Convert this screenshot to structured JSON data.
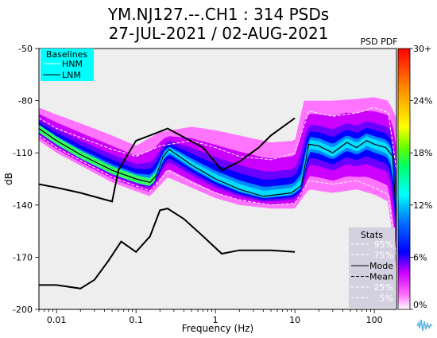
{
  "chart_data": {
    "type": "heatmap",
    "title": "YM.NJ127.--.CH1 : 314 PSDs",
    "subtitle": "27-JUL-2021 / 02-AUG-2021",
    "xlabel": "Frequency (Hz)",
    "ylabel": "dB",
    "x_scale": "log",
    "xlim": [
      0.006,
      190
    ],
    "ylim": [
      -200,
      -50
    ],
    "x_ticks": [
      {
        "value": 0.01,
        "label": "0.01"
      },
      {
        "value": 0.1,
        "label": "0.1"
      },
      {
        "value": 1,
        "label": "1"
      },
      {
        "value": 10,
        "label": "10"
      },
      {
        "value": 100,
        "label": "100"
      }
    ],
    "y_ticks": [
      {
        "value": -50,
        "label": "-50"
      },
      {
        "value": -80,
        "label": "-80"
      },
      {
        "value": -110,
        "label": "-110"
      },
      {
        "value": -140,
        "label": "-140"
      },
      {
        "value": -170,
        "label": "-170"
      },
      {
        "value": -200,
        "label": "-200"
      }
    ],
    "colorbar": {
      "label": "PSD PDF",
      "ticks": [
        {
          "value": 30,
          "label": "30+"
        },
        {
          "value": 24,
          "label": "24%"
        },
        {
          "value": 18,
          "label": "18%"
        },
        {
          "value": 12,
          "label": "12%"
        },
        {
          "value": 6,
          "label": "6%"
        },
        {
          "value": 0,
          "label": "0%"
        }
      ]
    },
    "baselines": {
      "title": "Baselines",
      "entries": [
        {
          "name": "HNM",
          "color": "#ffffff"
        },
        {
          "name": "LNM",
          "color": "#000000"
        }
      ],
      "box_color": "#00ffff"
    },
    "stats": {
      "title": "Stats",
      "entries": [
        {
          "name": "95%",
          "color": "#ffffff",
          "style": "dashed"
        },
        {
          "name": "75%",
          "color": "#ffffff",
          "style": "dashed"
        },
        {
          "name": "Mode",
          "color": "#000000",
          "style": "solid"
        },
        {
          "name": "Mean",
          "color": "#000000",
          "style": "dashed"
        },
        {
          "name": "25%",
          "color": "#ffffff",
          "style": "dashed"
        },
        {
          "name": "5%",
          "color": "#ffffff",
          "style": "dashed"
        }
      ],
      "box_color": "#d3d0e0"
    },
    "hnm": [
      [
        0.006,
        -128
      ],
      [
        0.01,
        -130
      ],
      [
        0.02,
        -133
      ],
      [
        0.05,
        -138
      ],
      [
        0.06,
        -120
      ],
      [
        0.1,
        -103
      ],
      [
        0.15,
        -100
      ],
      [
        0.25,
        -96
      ],
      [
        0.4,
        -101
      ],
      [
        0.7,
        -107
      ],
      [
        1.2,
        -120
      ],
      [
        2,
        -115
      ],
      [
        3.5,
        -107
      ],
      [
        5,
        -100
      ],
      [
        10,
        -90
      ]
    ],
    "lnm": [
      [
        0.006,
        -186
      ],
      [
        0.01,
        -186
      ],
      [
        0.02,
        -188
      ],
      [
        0.03,
        -183
      ],
      [
        0.045,
        -172
      ],
      [
        0.065,
        -161
      ],
      [
        0.1,
        -167
      ],
      [
        0.15,
        -158
      ],
      [
        0.2,
        -143
      ],
      [
        0.25,
        -142
      ],
      [
        0.4,
        -148
      ],
      [
        0.7,
        -158
      ],
      [
        1.2,
        -168
      ],
      [
        2,
        -166
      ],
      [
        5,
        -166
      ],
      [
        10,
        -167
      ]
    ],
    "mode": [
      [
        0.006,
        -96
      ],
      [
        0.01,
        -103
      ],
      [
        0.02,
        -111
      ],
      [
        0.05,
        -120
      ],
      [
        0.1,
        -125
      ],
      [
        0.15,
        -127
      ],
      [
        0.18,
        -123
      ],
      [
        0.22,
        -112
      ],
      [
        0.26,
        -108
      ],
      [
        0.35,
        -112
      ],
      [
        0.5,
        -117
      ],
      [
        1,
        -125
      ],
      [
        2,
        -131
      ],
      [
        4,
        -135
      ],
      [
        9,
        -133
      ],
      [
        12,
        -129
      ],
      [
        15,
        -105
      ],
      [
        20,
        -106
      ],
      [
        30,
        -110
      ],
      [
        45,
        -104
      ],
      [
        60,
        -107
      ],
      [
        80,
        -103
      ],
      [
        100,
        -105
      ],
      [
        140,
        -107
      ],
      [
        170,
        -112
      ],
      [
        190,
        -150
      ]
    ],
    "p95": [
      [
        0.006,
        -90
      ],
      [
        0.01,
        -96
      ],
      [
        0.05,
        -108
      ],
      [
        0.1,
        -112
      ],
      [
        0.2,
        -106
      ],
      [
        0.5,
        -103
      ],
      [
        1,
        -107
      ],
      [
        2,
        -112
      ],
      [
        5,
        -114
      ],
      [
        10,
        -110
      ],
      [
        15,
        -86
      ],
      [
        30,
        -89
      ],
      [
        60,
        -87
      ],
      [
        100,
        -84
      ],
      [
        150,
        -87
      ],
      [
        190,
        -120
      ]
    ],
    "p5": [
      [
        0.006,
        -100
      ],
      [
        0.01,
        -107
      ],
      [
        0.05,
        -124
      ],
      [
        0.15,
        -132
      ],
      [
        0.25,
        -120
      ],
      [
        0.5,
        -127
      ],
      [
        1,
        -133
      ],
      [
        2,
        -137
      ],
      [
        5,
        -140
      ],
      [
        10,
        -139
      ],
      [
        15,
        -126
      ],
      [
        30,
        -128
      ],
      [
        60,
        -126
      ],
      [
        100,
        -130
      ],
      [
        150,
        -134
      ],
      [
        190,
        -170
      ]
    ],
    "pdf_band": {
      "upper": [
        [
          0.006,
          -84
        ],
        [
          0.01,
          -88
        ],
        [
          0.02,
          -93
        ],
        [
          0.05,
          -100
        ],
        [
          0.1,
          -106
        ],
        [
          0.2,
          -98
        ],
        [
          0.5,
          -95
        ],
        [
          1,
          -97
        ],
        [
          2,
          -100
        ],
        [
          5,
          -104
        ],
        [
          10,
          -103
        ],
        [
          13,
          -80
        ],
        [
          30,
          -80
        ],
        [
          60,
          -79
        ],
        [
          100,
          -78
        ],
        [
          150,
          -80
        ],
        [
          190,
          -90
        ]
      ],
      "lower": [
        [
          0.006,
          -103
        ],
        [
          0.01,
          -110
        ],
        [
          0.05,
          -127
        ],
        [
          0.15,
          -135
        ],
        [
          0.25,
          -124
        ],
        [
          0.5,
          -130
        ],
        [
          1,
          -136
        ],
        [
          2,
          -140
        ],
        [
          5,
          -142
        ],
        [
          10,
          -142
        ],
        [
          15,
          -131
        ],
        [
          30,
          -133
        ],
        [
          60,
          -131
        ],
        [
          100,
          -134
        ],
        [
          150,
          -138
        ],
        [
          190,
          -178
        ]
      ]
    },
    "grid": false,
    "legend_placement": "top-left"
  }
}
